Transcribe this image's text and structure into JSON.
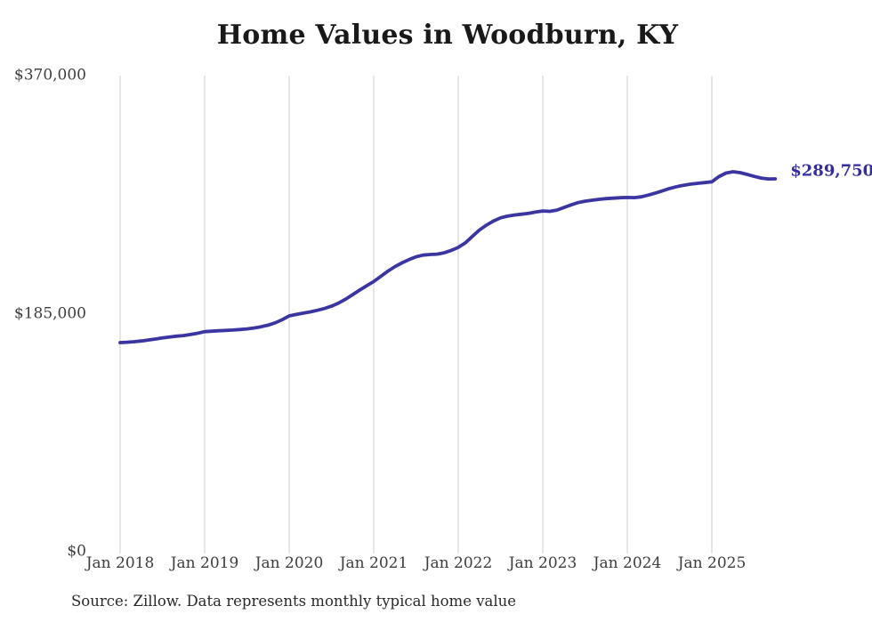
{
  "chart_data": {
    "type": "line",
    "title": "Home Values in Woodburn, KY",
    "x_tick_labels": [
      "Jan 2018",
      "Jan 2019",
      "Jan 2020",
      "Jan 2021",
      "Jan 2022",
      "Jan 2023",
      "Jan 2024",
      "Jan 2025"
    ],
    "y_ticks": [
      {
        "label": "$370,000",
        "value": 370000
      },
      {
        "label": "$185,000",
        "value": 185000
      },
      {
        "label": "$0",
        "value": 0
      }
    ],
    "ylim": [
      0,
      370000
    ],
    "grid": "vertical year gridlines only",
    "legend_position": "none",
    "series": [
      {
        "name": "Typical home value",
        "frequency": "monthly",
        "start_month": "Jan 2018",
        "end_month": "Oct 2025",
        "values": [
          162500,
          162800,
          163200,
          163800,
          164500,
          165300,
          166200,
          166900,
          167500,
          168000,
          168800,
          169800,
          171000,
          171400,
          171700,
          172000,
          172300,
          172700,
          173200,
          173900,
          174800,
          176100,
          177900,
          180300,
          183300,
          184400,
          185400,
          186400,
          187600,
          189000,
          190800,
          193200,
          196200,
          199800,
          203300,
          206700,
          210000,
          214000,
          218000,
          221500,
          224500,
          227000,
          229200,
          230500,
          231000,
          231300,
          232300,
          234200,
          236500,
          240000,
          245000,
          250000,
          253800,
          257000,
          259500,
          260800,
          261700,
          262300,
          263000,
          264000,
          264800,
          264500,
          265500,
          267500,
          269500,
          271300,
          272400,
          273200,
          273900,
          274400,
          274800,
          275100,
          275300,
          275200,
          275800,
          277200,
          278800,
          280500,
          282300,
          283700,
          284800,
          285700,
          286300,
          286900,
          287500,
          291500,
          294300,
          295300,
          294600,
          293200,
          291700,
          290400,
          289700,
          289750
        ]
      }
    ],
    "end_annotation": {
      "label": "$289,750",
      "value": 289750
    },
    "source": "Source: Zillow. Data represents monthly typical home value",
    "colors": {
      "line": "#3b35a2",
      "annotation": "#332e9b",
      "gridline": "#cfcfcf",
      "title": "#191919",
      "tick": "#3d3d3d",
      "source_text": "#2a2a2a",
      "background": "#ffffff"
    }
  }
}
